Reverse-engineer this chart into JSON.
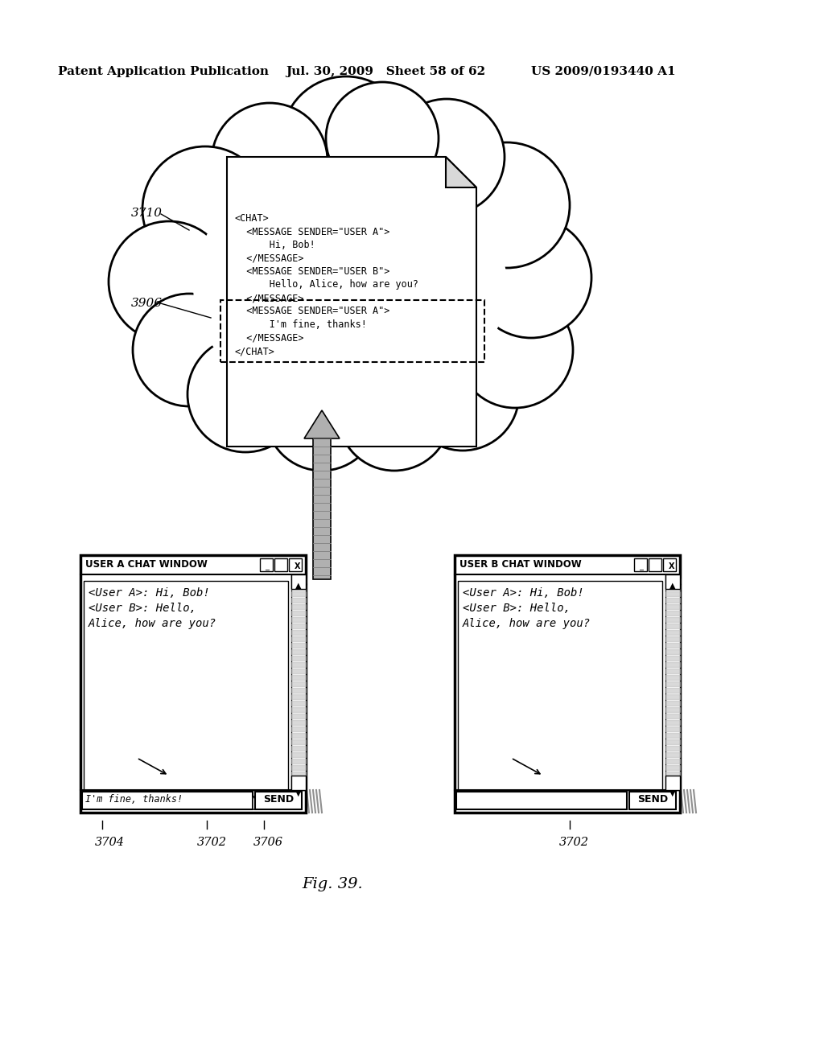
{
  "bg_color": "#ffffff",
  "header_text": "Patent Application Publication",
  "header_date": "Jul. 30, 2009   Sheet 58 of 62",
  "header_patent": "US 2009/0193440 A1",
  "fig_label": "Fig. 39.",
  "cloud_label": "3710",
  "doc_label": "3906",
  "window_a_title": "USER A CHAT WINDOW",
  "window_b_title": "USER B CHAT WINDOW",
  "window_a_chat": "<User A>: Hi, Bob!\n<User B>: Hello,\nAlice, how are you?",
  "window_b_chat": "<User A>: Hi, Bob!\n<User B>: Hello,\nAlice, how are you?",
  "window_a_input": "I'm fine, thanks!",
  "send_label": "SEND",
  "label_3702a": "3702",
  "label_3702b": "3702",
  "label_3704": "3704",
  "label_3706": "3706",
  "doc_text": [
    [
      "<CHAT>",
      false
    ],
    [
      "  <MESSAGE SENDER=\"USER A\">",
      false
    ],
    [
      "      Hi, Bob!",
      false
    ],
    [
      "  </MESSAGE>",
      false
    ],
    [
      "  <MESSAGE SENDER=\"USER B\">",
      false
    ],
    [
      "      Hello, Alice, how are you?",
      false
    ],
    [
      "  </MESSAGE>",
      true
    ],
    [
      "  <MESSAGE SENDER=\"USER A\">",
      true
    ],
    [
      "      I'm fine, thanks!",
      true
    ],
    [
      "  </MESSAGE>",
      true
    ],
    [
      "</CHAT>",
      false
    ]
  ]
}
